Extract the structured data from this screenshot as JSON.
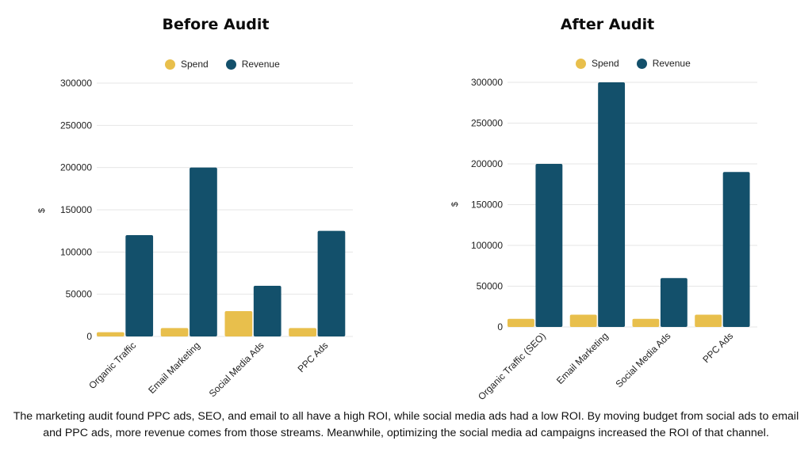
{
  "colors": {
    "spend": "#e8bf4c",
    "revenue": "#13506b",
    "grid": "#e6e6e6"
  },
  "caption": "The marketing audit found PPC ads, SEO, and email to all have a high ROI, while social media ads had a low ROI. By moving budget from social ads to email and PPC ads, more revenue comes from those streams. Meanwhile, optimizing the social media ad campaigns increased the ROI of that channel.",
  "chart_data": [
    {
      "type": "bar",
      "title": "Before Audit",
      "xlabel": "",
      "ylabel": "$",
      "ylim": [
        0,
        300000
      ],
      "yticks": [
        "0",
        "50000",
        "100000",
        "150000",
        "200000",
        "250000",
        "300000"
      ],
      "grid": true,
      "legend_position": "top",
      "categories": [
        "Organic Traffic",
        "Email Marketing",
        "Social Media Ads",
        "PPC Ads"
      ],
      "series": [
        {
          "name": "Spend",
          "values": [
            5000,
            10000,
            30000,
            10000
          ]
        },
        {
          "name": "Revenue",
          "values": [
            120000,
            200000,
            60000,
            125000
          ]
        }
      ]
    },
    {
      "type": "bar",
      "title": "After Audit",
      "xlabel": "",
      "ylabel": "$",
      "ylim": [
        0,
        300000
      ],
      "yticks": [
        "0",
        "50000",
        "100000",
        "150000",
        "200000",
        "250000",
        "300000"
      ],
      "grid": true,
      "legend_position": "top",
      "categories": [
        "Organic Traffic (SEO)",
        "Email Marketing",
        "Social Media Ads",
        "PPC Ads"
      ],
      "series": [
        {
          "name": "Spend",
          "values": [
            10000,
            15000,
            10000,
            15000
          ]
        },
        {
          "name": "Revenue",
          "values": [
            200000,
            300000,
            60000,
            190000
          ]
        }
      ]
    }
  ]
}
